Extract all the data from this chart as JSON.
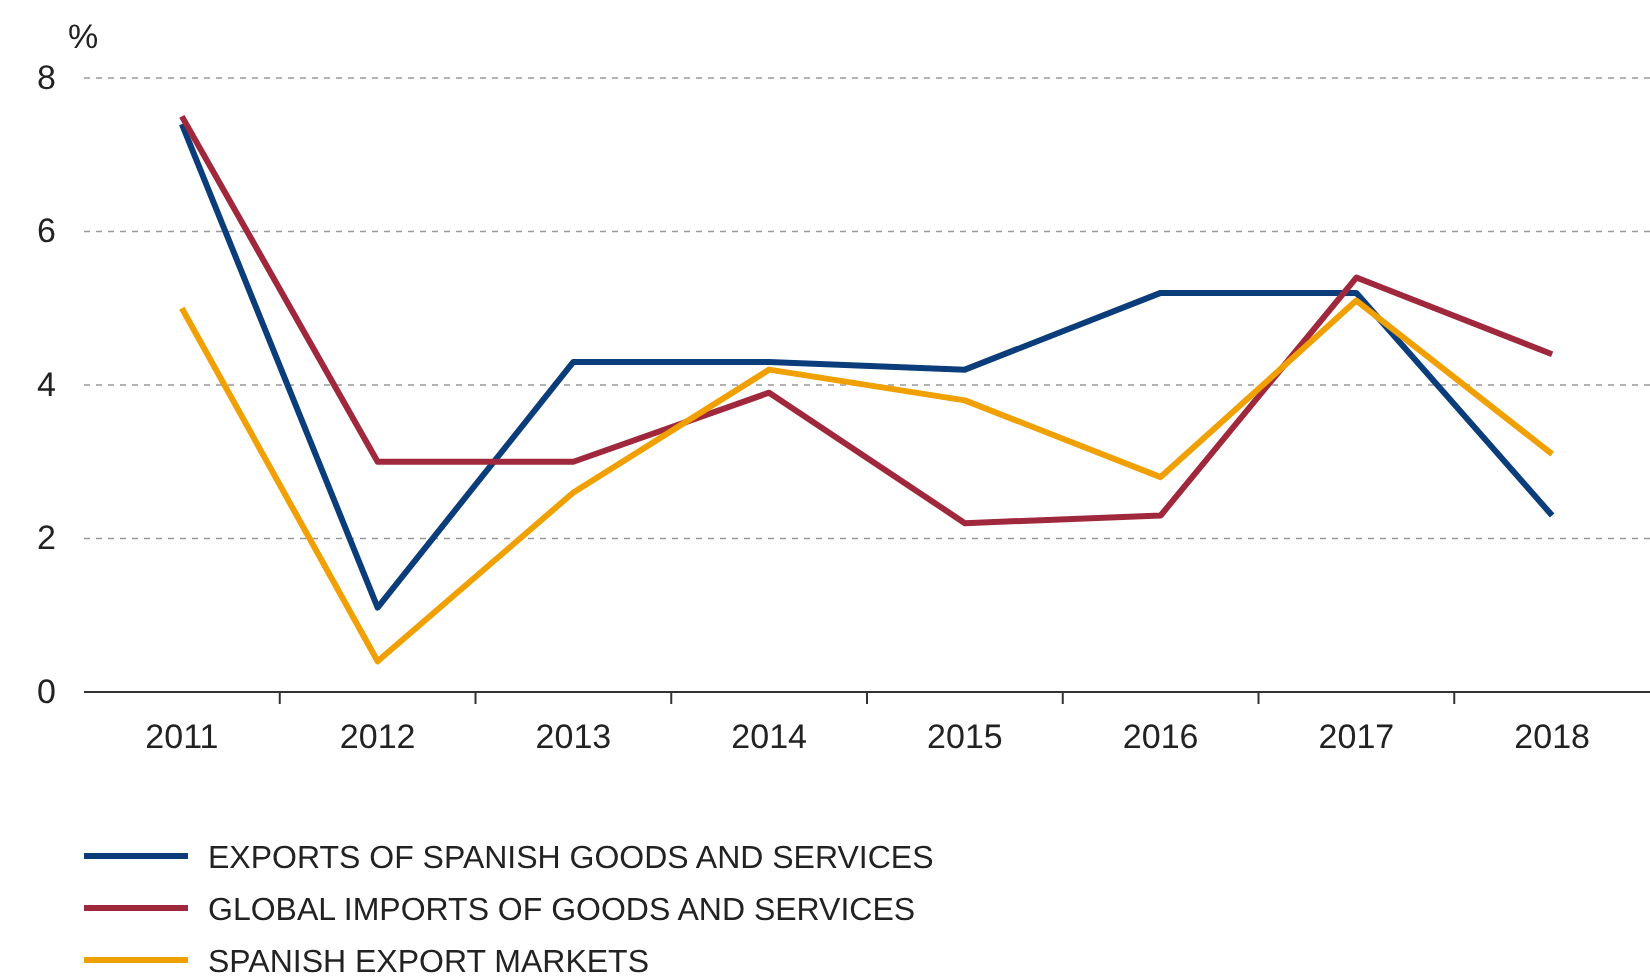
{
  "chart_data": {
    "type": "line",
    "ylabel": "%",
    "categories": [
      "2011",
      "2012",
      "2013",
      "2014",
      "2015",
      "2016",
      "2017",
      "2018"
    ],
    "series": [
      {
        "name": "EXPORTS OF SPANISH GOODS AND SERVICES",
        "color": "#0b3d7a",
        "values": [
          7.4,
          1.1,
          4.3,
          4.3,
          4.2,
          5.2,
          5.2,
          2.3
        ]
      },
      {
        "name": "GLOBAL IMPORTS OF GOODS AND SERVICES",
        "color": "#a0283c",
        "values": [
          7.5,
          3.0,
          3.0,
          3.9,
          2.2,
          2.3,
          5.4,
          4.4
        ]
      },
      {
        "name": "SPANISH EXPORT MARKETS",
        "color": "#f0a000",
        "values": [
          5.0,
          0.4,
          2.6,
          4.2,
          3.8,
          2.8,
          5.1,
          3.1
        ]
      }
    ],
    "ylim": [
      0,
      8
    ],
    "yticks": [
      0,
      2,
      4,
      6,
      8
    ],
    "grid": "y",
    "legend": "bottom",
    "marker": "none",
    "line_style": "solid"
  }
}
